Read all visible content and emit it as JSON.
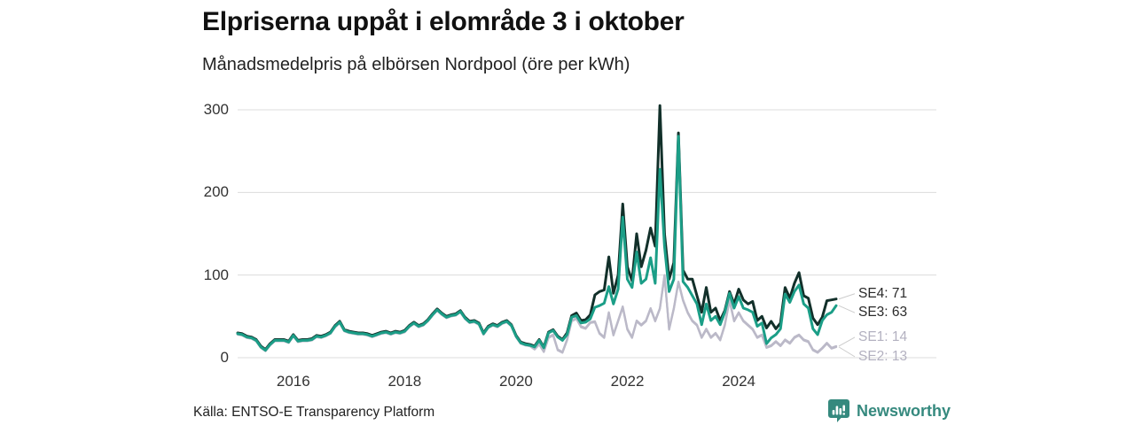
{
  "title": "Elpriserna uppåt i elområde 3 i oktober",
  "subtitle": "Månadsmedelpris på elbörsen Nordpool (öre per kWh)",
  "source": "Källa: ENTSO-E Transparency Platform",
  "brand": {
    "name": "Newsworthy",
    "color": "#35897e"
  },
  "colors": {
    "background": "#ffffff",
    "gridline": "#dcdcdc",
    "connector": "#cccccc",
    "title_text": "#111111",
    "tick_text": "#333333"
  },
  "chart_data": {
    "type": "line",
    "title": "Elpriserna uppåt i elområde 3 i oktober",
    "subtitle": "Månadsmedelpris på elbörsen Nordpool (öre per kWh)",
    "unit": "öre per kWh",
    "x_start": "2015-01",
    "x_end": "2025-10",
    "x_interval": "monthly",
    "x_tick_labels": [
      "2016",
      "2018",
      "2020",
      "2022",
      "2024"
    ],
    "y_ticks": [
      0,
      100,
      200,
      300
    ],
    "ylim": [
      0,
      300
    ],
    "grid": true,
    "legend_position": "right-end-labels",
    "series": [
      {
        "name": "SE4",
        "end_label": "SE4: 71",
        "end_value": 71,
        "color": "#12302a",
        "label_color": "#2a2a2a",
        "values": [
          30,
          29,
          26,
          25,
          22,
          14,
          10,
          17,
          22,
          22,
          22,
          20,
          28,
          21,
          22,
          22,
          23,
          27,
          26,
          28,
          31,
          39,
          44,
          34,
          32,
          31,
          30,
          30,
          29,
          27,
          29,
          31,
          32,
          30,
          32,
          31,
          33,
          39,
          43,
          39,
          41,
          46,
          53,
          59,
          54,
          50,
          52,
          53,
          57,
          49,
          44,
          45,
          42,
          30,
          38,
          41,
          39,
          43,
          45,
          40,
          27,
          19,
          17,
          16,
          14,
          22,
          13,
          31,
          34,
          26,
          22,
          30,
          51,
          54,
          45,
          46,
          52,
          76,
          80,
          82,
          122,
          78,
          100,
          186,
          110,
          93,
          150,
          110,
          130,
          157,
          135,
          305,
          150,
          95,
          115,
          272,
          106,
          95,
          95,
          75,
          55,
          85,
          55,
          60,
          45,
          57,
          80,
          65,
          83,
          70,
          65,
          68,
          45,
          50,
          36,
          44,
          35,
          42,
          85,
          72,
          90,
          103,
          75,
          72,
          48,
          40,
          49,
          69,
          70,
          71
        ]
      },
      {
        "name": "SE3",
        "end_label": "SE3: 63",
        "end_value": 63,
        "color": "#1b9e87",
        "label_color": "#2a2a2a",
        "values": [
          29,
          28,
          25,
          24,
          21,
          13,
          9,
          16,
          21,
          21,
          21,
          19,
          27,
          20,
          21,
          21,
          22,
          26,
          25,
          27,
          30,
          38,
          43,
          33,
          31,
          30,
          29,
          29,
          28,
          26,
          28,
          30,
          31,
          29,
          31,
          30,
          32,
          38,
          42,
          38,
          40,
          45,
          52,
          58,
          53,
          49,
          51,
          52,
          56,
          48,
          43,
          44,
          41,
          29,
          37,
          40,
          38,
          42,
          44,
          39,
          26,
          18,
          16,
          15,
          13,
          21,
          12,
          30,
          33,
          25,
          21,
          28,
          49,
          51,
          42,
          43,
          47,
          61,
          63,
          66,
          86,
          65,
          83,
          170,
          95,
          85,
          128,
          90,
          95,
          121,
          90,
          228,
          135,
          80,
          95,
          268,
          92,
          85,
          75,
          65,
          40,
          65,
          45,
          50,
          40,
          55,
          78,
          60,
          74,
          60,
          58,
          55,
          38,
          42,
          17,
          24,
          28,
          35,
          77,
          67,
          80,
          88,
          65,
          60,
          35,
          28,
          45,
          52,
          55,
          63
        ]
      },
      {
        "name": "SE1",
        "end_label": "SE1: 14",
        "end_value": 14,
        "color": "#bbb9c8",
        "label_color": "#b3b1c0",
        "values": [
          28,
          27,
          24,
          23,
          20,
          12,
          8,
          15,
          20,
          20,
          20,
          18,
          26,
          19,
          20,
          20,
          21,
          25,
          24,
          26,
          29,
          37,
          42,
          32,
          30,
          29,
          28,
          28,
          27,
          25,
          27,
          29,
          30,
          28,
          30,
          29,
          31,
          37,
          41,
          37,
          39,
          44,
          51,
          57,
          52,
          48,
          50,
          51,
          55,
          47,
          42,
          43,
          40,
          28,
          36,
          39,
          37,
          41,
          43,
          38,
          25,
          17,
          15,
          14,
          11,
          17,
          8,
          25,
          28,
          10,
          7,
          22,
          45,
          48,
          38,
          36,
          43,
          44,
          30,
          25,
          55,
          28,
          45,
          62,
          35,
          25,
          45,
          40,
          45,
          60,
          45,
          60,
          100,
          35,
          60,
          92,
          70,
          55,
          45,
          40,
          25,
          35,
          25,
          30,
          22,
          40,
          70,
          45,
          55,
          45,
          40,
          35,
          25,
          28,
          13,
          15,
          20,
          15,
          22,
          18,
          25,
          28,
          22,
          20,
          10,
          7,
          12,
          18,
          12,
          14
        ]
      },
      {
        "name": "SE2",
        "end_label": "SE2: 13",
        "end_value": 13,
        "color": "#bbb9c8",
        "label_color": "#b3b1c0",
        "values": [
          28,
          27,
          24,
          23,
          20,
          12,
          8,
          15,
          20,
          20,
          20,
          18,
          26,
          19,
          20,
          20,
          21,
          25,
          24,
          26,
          29,
          37,
          42,
          32,
          30,
          29,
          28,
          28,
          27,
          25,
          27,
          29,
          30,
          28,
          30,
          29,
          31,
          37,
          41,
          37,
          39,
          44,
          51,
          57,
          52,
          48,
          50,
          51,
          55,
          47,
          42,
          43,
          40,
          28,
          36,
          39,
          37,
          41,
          43,
          38,
          25,
          17,
          15,
          14,
          10,
          16,
          7,
          24,
          27,
          9,
          6,
          21,
          44,
          47,
          37,
          35,
          42,
          43,
          29,
          24,
          54,
          27,
          44,
          61,
          34,
          24,
          44,
          39,
          44,
          59,
          44,
          59,
          99,
          34,
          59,
          91,
          69,
          54,
          44,
          39,
          24,
          34,
          24,
          29,
          21,
          39,
          69,
          44,
          54,
          44,
          39,
          34,
          24,
          27,
          12,
          14,
          19,
          14,
          21,
          17,
          24,
          27,
          21,
          19,
          9,
          6,
          11,
          17,
          11,
          13
        ]
      }
    ]
  }
}
